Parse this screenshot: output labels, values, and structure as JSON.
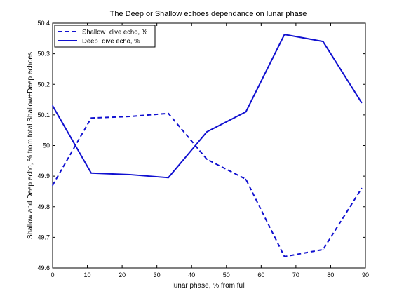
{
  "chart_data": {
    "type": "line",
    "title": "The Deep or Shallow echoes dependance on lunar phase",
    "xlabel": "lunar phase, % from full",
    "ylabel": "Shallow and Deep echo, % from total Shallow+Deep echoes",
    "xlim": [
      0,
      90
    ],
    "ylim": [
      49.6,
      50.4
    ],
    "xticks": [
      0,
      10,
      20,
      30,
      40,
      50,
      60,
      70,
      80,
      90
    ],
    "yticks": [
      49.6,
      49.7,
      49.8,
      49.9,
      50,
      50.1,
      50.2,
      50.3,
      50.4
    ],
    "ytick_labels": [
      "49.6",
      "49.7",
      "49.8",
      "49.9",
      "50",
      "50.1",
      "50.2",
      "50.3",
      "50.4"
    ],
    "grid": false,
    "legend_position": "top-left",
    "series": [
      {
        "name": "Shallow−dive echo, %",
        "style": "dashed",
        "color": "#1010d0",
        "x": [
          0,
          11.1,
          22.2,
          33.3,
          44.4,
          55.6,
          66.7,
          77.8,
          88.9
        ],
        "y": [
          49.87,
          50.09,
          50.095,
          50.105,
          49.955,
          49.89,
          49.637,
          49.66,
          49.86
        ]
      },
      {
        "name": "Deep−dive echo, %",
        "style": "solid",
        "color": "#1010d0",
        "x": [
          0,
          11.1,
          22.2,
          33.3,
          44.4,
          55.6,
          66.7,
          77.8,
          88.9
        ],
        "y": [
          50.13,
          49.91,
          49.905,
          49.895,
          50.045,
          50.11,
          50.363,
          50.34,
          50.14
        ]
      }
    ]
  }
}
